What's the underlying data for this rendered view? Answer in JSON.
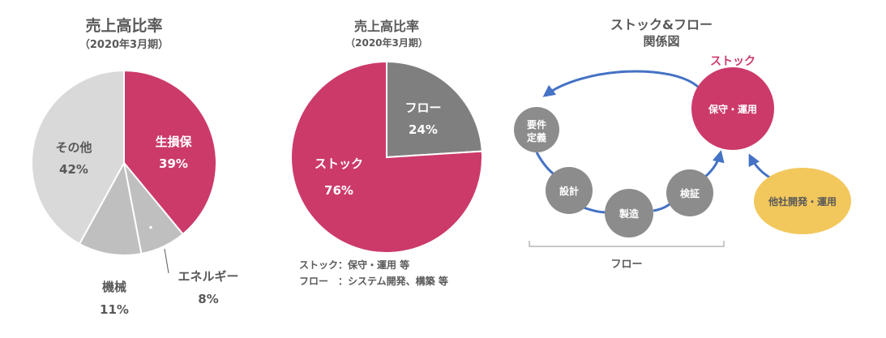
{
  "colors": {
    "pink": "#cc3a6a",
    "gray_dark": "#7f7f7f",
    "gray_light": "#d9d9d9",
    "gray_mid": "#bfbfbf",
    "gray_bubble": "#8c8c8c",
    "blue": "#4472c4",
    "yellow": "#f2c75c",
    "text": "#595959"
  },
  "chart_data": [
    {
      "type": "pie",
      "title": "売上高比率",
      "subtitle": "（2020年3月期）",
      "slices": [
        {
          "label": "生損保",
          "value": 39,
          "value_label": "39%"
        },
        {
          "label": "エネルギー",
          "value": 8,
          "value_label": "8%"
        },
        {
          "label": "機械",
          "value": 11,
          "value_label": "11%"
        },
        {
          "label": "その他",
          "value": 42,
          "value_label": "42%"
        }
      ],
      "marker": "・"
    },
    {
      "type": "pie",
      "title": "売上高比率",
      "subtitle": "（2020年3月期）",
      "slices": [
        {
          "label": "フロー",
          "value": 24,
          "value_label": "24%"
        },
        {
          "label": "ストック",
          "value": 76,
          "value_label": "76%"
        }
      ],
      "notes": [
        "ストック：保守・運用 等",
        "フロー　：システム開発、構築 等"
      ]
    }
  ],
  "diagram": {
    "title_line1": "ストック&フロー",
    "title_line2": "関係図",
    "stock_label": "ストック",
    "stock_node": "保守・運用",
    "nodes": {
      "requirements_line1": "要件",
      "requirements_line2": "定義",
      "design": "設計",
      "manufacturing": "製造",
      "verification": "検証"
    },
    "external": "他社開発・運用",
    "flow_label": "フロー"
  }
}
